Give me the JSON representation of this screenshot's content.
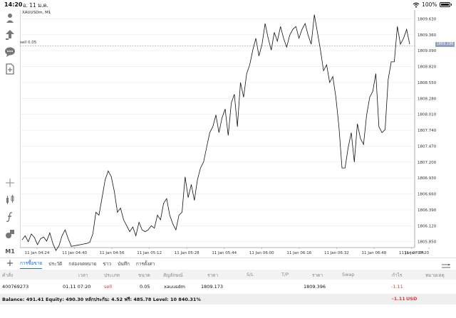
{
  "status_bar": {
    "time": "14:20",
    "date": "อ. 11 ม.ค.",
    "battery": "100%"
  },
  "chart": {
    "title": "XAUUSDm, M1",
    "sell_line_label": "sell 0.05",
    "current_price_tag": "1809.196",
    "line_color": "#111111",
    "grid_color": "#e6e6e6",
    "dotted_line_color": "#9a9a9a",
    "price_tag_color": "#8aa0c4"
  },
  "chart_data": {
    "type": "line",
    "title": "XAUUSDm, M1",
    "y_ticks": [
      "1809.630",
      "1809.360",
      "1809.090",
      "1808.820",
      "1808.550",
      "1808.280",
      "1808.010",
      "1807.740",
      "1807.470",
      "1807.200",
      "1806.930",
      "1806.660",
      "1806.390",
      "1806.120",
      "1805.850"
    ],
    "x_ticks": [
      "11 Jan 04:24",
      "11 Jan 04:40",
      "11 Jan 04:56",
      "11 Jan 05:12",
      "11 Jan 05:28",
      "11 Jan 05:44",
      "11 Jan 06:00",
      "11 Jan 06:16",
      "11 Jan 06:32",
      "11 Jan 06:48",
      "11 Jan 07:04",
      "11 Jan 07:20"
    ],
    "ylim": [
      1805.75,
      1809.78
    ],
    "grid": true,
    "sell_level": 1809.173,
    "current_price": 1809.196,
    "series": [
      {
        "values": [
          1805.88,
          1805.95,
          1805.85,
          1805.98,
          1805.92,
          1805.8,
          1805.9,
          1805.93,
          1805.86,
          1806.0,
          1805.82,
          1805.7,
          1805.78,
          1805.95,
          1806.05,
          1805.9,
          1805.77,
          1805.78,
          1805.79,
          1805.8,
          1805.81,
          1805.82,
          1805.84,
          1805.98,
          1806.35,
          1806.3,
          1806.6,
          1806.9,
          1807.05,
          1806.95,
          1806.7,
          1806.35,
          1806.42,
          1806.22,
          1806.12,
          1806.02,
          1806.1,
          1805.95,
          1806.18,
          1806.05,
          1806.02,
          1806.05,
          1806.12,
          1806.08,
          1806.3,
          1806.22,
          1806.5,
          1806.58,
          1806.3,
          1806.15,
          1806.05,
          1806.3,
          1806.35,
          1806.95,
          1806.6,
          1806.82,
          1806.55,
          1806.9,
          1807.1,
          1807.2,
          1807.45,
          1807.7,
          1807.8,
          1808.0,
          1807.7,
          1807.95,
          1808.1,
          1807.65,
          1808.2,
          1808.35,
          1807.8,
          1808.55,
          1808.3,
          1808.7,
          1808.85,
          1809.1,
          1809.3,
          1809.0,
          1809.2,
          1809.55,
          1809.3,
          1809.1,
          1809.4,
          1809.25,
          1809.5,
          1809.3,
          1809.15,
          1809.35,
          1809.45,
          1809.5,
          1809.3,
          1809.45,
          1809.55,
          1809.35,
          1809.2,
          1809.7,
          1809.4,
          1809.1,
          1808.75,
          1808.85,
          1808.55,
          1808.65,
          1808.3,
          1807.8,
          1807.1,
          1807.1,
          1807.45,
          1807.7,
          1807.2,
          1807.85,
          1807.6,
          1807.5,
          1808.0,
          1808.3,
          1808.4,
          1808.7,
          1807.8,
          1807.7,
          1807.75,
          1808.6,
          1808.9,
          1808.9,
          1809.5,
          1809.2,
          1809.3,
          1809.45,
          1809.2
        ]
      }
    ]
  },
  "left_toolbar": {
    "timeframe_label": "M1"
  },
  "bottom_nav": {
    "tabs": [
      "การซื้อขาย",
      "ประวัติ",
      "กล่องจดหมาย",
      "ข่าว",
      "บันทึก",
      "การตั้งค่า"
    ]
  },
  "trade_table": {
    "headers": [
      "คำสั่ง",
      "เวลา",
      "ประเภท",
      "ขนาด",
      "สัญลักษณ์",
      "ราคา",
      "S/L",
      "T/P",
      "ราคา",
      "Swap",
      "กำไร",
      "หมายเหตุ"
    ],
    "row": {
      "order": "400769273",
      "time": "01.11 07:20",
      "type": "sell",
      "size": "0.05",
      "symbol": "xauusdm",
      "open_price": "1809.173",
      "current_price": "1809.396",
      "profit": "-1.11"
    }
  },
  "account": {
    "summary": "Balance: 491.41 Equity: 490.30 หลักประกัน: 4.52 ฟรี: 485.78 Level: 10 840.31%",
    "total_profit": "-1.11",
    "currency": "USD"
  }
}
